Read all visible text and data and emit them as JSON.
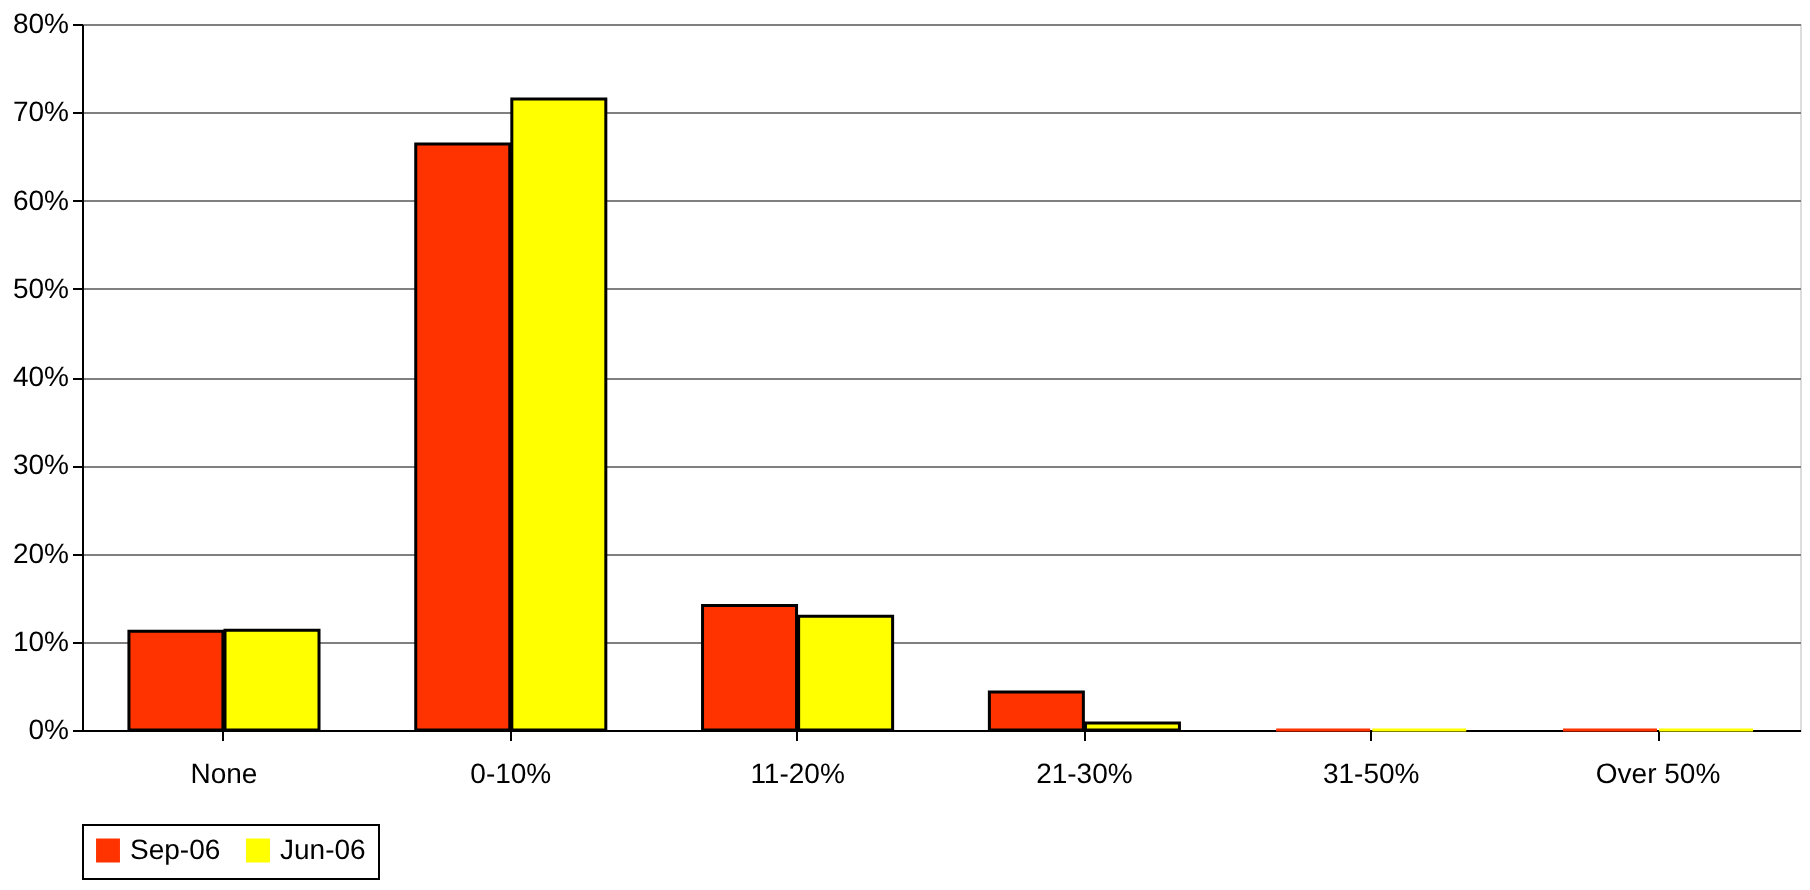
{
  "chart_data": {
    "type": "bar",
    "categories": [
      "None",
      "0-10%",
      "11-20%",
      "21-30%",
      "31-50%",
      "Over 50%"
    ],
    "series": [
      {
        "name": "Sep-06",
        "color": "#ff3300",
        "values": [
          11.2,
          66.4,
          14.1,
          4.3,
          0,
          0
        ]
      },
      {
        "name": "Jun-06",
        "color": "#ffff00",
        "values": [
          11.3,
          71.5,
          12.9,
          0.8,
          0,
          0
        ]
      }
    ],
    "ylim": [
      0,
      80
    ],
    "yticks": [
      {
        "value": 0,
        "label": "0%"
      },
      {
        "value": 10,
        "label": "10%"
      },
      {
        "value": 20,
        "label": "20%"
      },
      {
        "value": 30,
        "label": "30%"
      },
      {
        "value": 40,
        "label": "40%"
      },
      {
        "value": 50,
        "label": "50%"
      },
      {
        "value": 60,
        "label": "60%"
      },
      {
        "value": 70,
        "label": "70%"
      },
      {
        "value": 80,
        "label": "80%"
      }
    ],
    "grid": "y",
    "legend": "bottom"
  }
}
